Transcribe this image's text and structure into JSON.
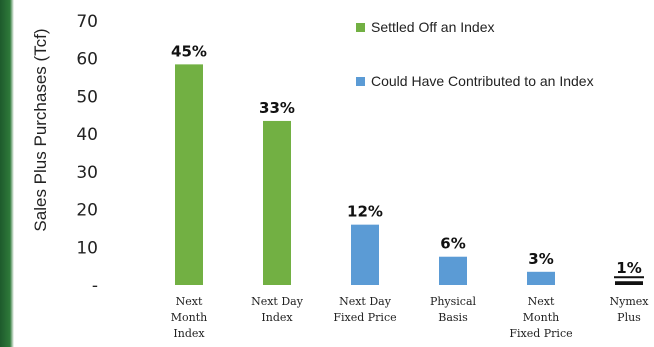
{
  "chart_data": {
    "type": "bar",
    "ylabel": "Sales Plus Purchases (Tcf)",
    "ylim": [
      0,
      70
    ],
    "yticks": [
      {
        "value": 0,
        "label": "-"
      },
      {
        "value": 10,
        "label": "10"
      },
      {
        "value": 20,
        "label": "20"
      },
      {
        "value": 30,
        "label": "30"
      },
      {
        "value": 40,
        "label": "40"
      },
      {
        "value": 50,
        "label": "50"
      },
      {
        "value": 60,
        "label": "60"
      },
      {
        "value": 70,
        "label": "70"
      }
    ],
    "grid": false,
    "legend_position": "top-right",
    "categories": [
      [
        "Next",
        "Month",
        "Index"
      ],
      [
        "Next Day",
        "Index"
      ],
      [
        "Next Day",
        "Fixed Price"
      ],
      [
        "Physical",
        "Basis"
      ],
      [
        "Next",
        "Month",
        "Fixed Price"
      ],
      [
        "Nymex",
        "Plus"
      ]
    ],
    "values": [
      58.5,
      43.5,
      16,
      7.5,
      3.5,
      1
    ],
    "data_labels": [
      "45%",
      "33%",
      "12%",
      "6%",
      "3%",
      "1%"
    ],
    "series_index": [
      0,
      0,
      1,
      1,
      1,
      1
    ],
    "series": [
      {
        "name": "Settled Off an Index",
        "color": "#72b043"
      },
      {
        "name": "Could Have Contributed to an Index",
        "color": "#5b9bd5"
      }
    ],
    "special_colors": {
      "5": "#111111"
    }
  }
}
